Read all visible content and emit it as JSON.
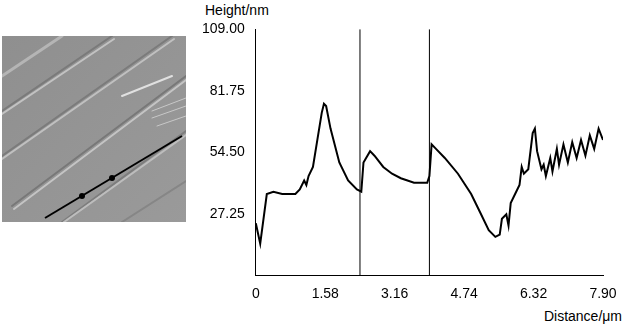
{
  "chart_data": {
    "type": "line",
    "x_label": "Distance/μm",
    "y_label": "Height/nm",
    "x": [
      0,
      0.1,
      0.25,
      0.4,
      0.6,
      0.9,
      1.0,
      1.1,
      1.15,
      1.2,
      1.3,
      1.4,
      1.5,
      1.55,
      1.6,
      1.7,
      1.9,
      2.1,
      2.3,
      2.4,
      2.45,
      2.6,
      2.7,
      2.9,
      3.1,
      3.3,
      3.6,
      3.9,
      3.95,
      4.0,
      4.1,
      4.3,
      4.6,
      4.9,
      5.1,
      5.3,
      5.45,
      5.55,
      5.6,
      5.7,
      5.75,
      5.8,
      5.9,
      6.0,
      6.05,
      6.1,
      6.2,
      6.3,
      6.35,
      6.4,
      6.5,
      6.55,
      6.6,
      6.7,
      6.75,
      6.85,
      6.9,
      7.0,
      7.1,
      7.2,
      7.3,
      7.4,
      7.5,
      7.6,
      7.7,
      7.8,
      7.9
    ],
    "values": [
      23,
      14,
      36,
      37,
      36,
      36,
      38,
      42,
      40,
      44,
      48,
      60,
      72,
      76,
      75,
      65,
      50,
      42,
      38,
      37,
      50,
      55,
      53,
      48,
      45,
      43,
      41,
      41,
      44,
      58,
      56,
      52,
      45,
      36,
      28,
      20,
      17,
      18,
      25,
      27,
      22,
      32,
      36,
      40,
      48,
      45,
      47,
      63,
      65,
      55,
      47,
      49,
      44,
      52,
      46,
      56,
      49,
      58,
      50,
      59,
      52,
      60,
      53,
      62,
      56,
      65,
      60
    ],
    "color": "#000000",
    "xlim": [
      0,
      7.9
    ],
    "xticks": [
      0,
      1.58,
      3.16,
      4.74,
      6.32,
      {
        "value": 7.9,
        "label": "7.90"
      }
    ],
    "ylim": [
      0,
      109
    ],
    "yticks": [
      27.25,
      {
        "value": 54.5,
        "label": "54.50"
      },
      81.75,
      {
        "value": 109,
        "label": "109.00"
      }
    ],
    "cursor_lines": [
      2.37,
      3.95
    ],
    "grid": false
  }
}
